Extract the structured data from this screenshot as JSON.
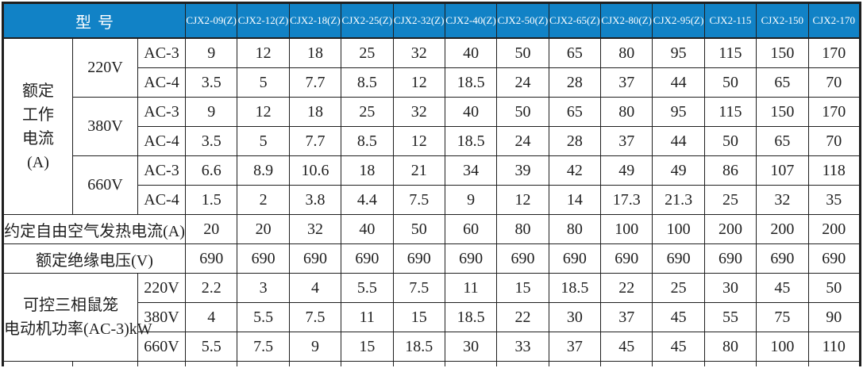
{
  "colors": {
    "header_bg": "#1182c6",
    "header_text": "#ffffff",
    "border": "#1f1f1f",
    "cell_bg": "#ffffff",
    "text": "#1f1f1f"
  },
  "header": {
    "model_label": "型号",
    "models": [
      "CJX2-09(Z)",
      "CJX2-12(Z)",
      "CJX2-18(Z)",
      "CJX2-25(Z)",
      "CJX2-32(Z)",
      "CJX2-40(Z)",
      "CJX2-50(Z)",
      "CJX2-65(Z)",
      "CJX2-80(Z)",
      "CJX2-95(Z)",
      "CJX2-115",
      "CJX2-150",
      "CJX2-170"
    ]
  },
  "rated_current": {
    "label_lines": [
      "额定",
      "工作",
      "电流",
      "(A)"
    ],
    "rows": [
      {
        "voltage": "220V",
        "category": "AC-3",
        "values": [
          "9",
          "12",
          "18",
          "25",
          "32",
          "40",
          "50",
          "65",
          "80",
          "95",
          "115",
          "150",
          "170"
        ]
      },
      {
        "voltage": "220V",
        "category": "AC-4",
        "values": [
          "3.5",
          "5",
          "7.7",
          "8.5",
          "12",
          "18.5",
          "24",
          "28",
          "37",
          "44",
          "50",
          "65",
          "70"
        ]
      },
      {
        "voltage": "380V",
        "category": "AC-3",
        "values": [
          "9",
          "12",
          "18",
          "25",
          "32",
          "40",
          "50",
          "65",
          "80",
          "95",
          "115",
          "150",
          "170"
        ]
      },
      {
        "voltage": "380V",
        "category": "AC-4",
        "values": [
          "3.5",
          "5",
          "7.7",
          "8.5",
          "12",
          "18.5",
          "24",
          "28",
          "37",
          "44",
          "50",
          "65",
          "70"
        ]
      },
      {
        "voltage": "660V",
        "category": "AC-3",
        "values": [
          "6.6",
          "8.9",
          "10.6",
          "18",
          "21",
          "34",
          "39",
          "42",
          "49",
          "49",
          "86",
          "107",
          "118"
        ]
      },
      {
        "voltage": "660V",
        "category": "AC-4",
        "values": [
          "1.5",
          "2",
          "3.8",
          "4.4",
          "7.5",
          "9",
          "12",
          "14",
          "17.3",
          "21.3",
          "25",
          "32",
          "35"
        ]
      }
    ]
  },
  "thermal_current": {
    "label": "约定自由空气发热电流(A)",
    "values": [
      "20",
      "20",
      "32",
      "40",
      "50",
      "60",
      "80",
      "80",
      "100",
      "100",
      "200",
      "200",
      "200"
    ]
  },
  "insulation_voltage": {
    "label": "额定绝缘电压(V)",
    "values": [
      "690",
      "690",
      "690",
      "690",
      "690",
      "690",
      "690",
      "690",
      "690",
      "690",
      "690",
      "690",
      "690"
    ]
  },
  "motor_power": {
    "label_lines": [
      "可控三相鼠笼",
      "电动机功率(AC-3)kW"
    ],
    "rows": [
      {
        "voltage": "220V",
        "values": [
          "2.2",
          "3",
          "4",
          "5.5",
          "7.5",
          "11",
          "15",
          "18.5",
          "22",
          "25",
          "30",
          "45",
          "50"
        ]
      },
      {
        "voltage": "380V",
        "values": [
          "4",
          "5.5",
          "7.5",
          "11",
          "15",
          "18.5",
          "22",
          "30",
          "37",
          "45",
          "55",
          "75",
          "90"
        ]
      },
      {
        "voltage": "660V",
        "values": [
          "5.5",
          "7.5",
          "9",
          "15",
          "18.5",
          "30",
          "33",
          "37",
          "45",
          "45",
          "80",
          "100",
          "110"
        ]
      }
    ]
  }
}
